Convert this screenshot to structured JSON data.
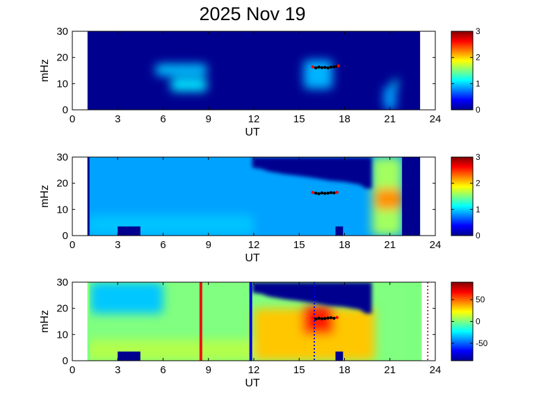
{
  "title": "2025 Nov 19",
  "colors": {
    "background_fill": "#00008f",
    "marker_red": "#ff0000",
    "marker_black": "#000000",
    "red_line": "#ee1111",
    "blue_line": "#0000dd",
    "green_band": "#7fff7f",
    "frame": "#000000"
  },
  "colorbar_scale": "jet",
  "chart_data": [
    {
      "type": "heatmap",
      "name": "panel-1",
      "xlabel": "UT",
      "ylabel": "mHz",
      "xlim": [
        0,
        24
      ],
      "ylim": [
        0,
        30
      ],
      "xticks": [
        "0",
        "3",
        "6",
        "9",
        "12",
        "15",
        "18",
        "21",
        "24"
      ],
      "yticks": [
        "0",
        "10",
        "20",
        "30"
      ],
      "data_time_range": [
        1,
        23
      ],
      "colorbar": {
        "min": 0,
        "max": 3,
        "ticks": [
          "0",
          "1",
          "2",
          "3"
        ]
      },
      "features": [
        {
          "t_range": [
            5.5,
            8.9
          ],
          "f_range": [
            13,
            17.5
          ],
          "level": 0.95
        },
        {
          "t_range": [
            6.5,
            8.9
          ],
          "f_range": [
            7,
            12
          ],
          "level": 1.05
        },
        {
          "t_range": [
            15.3,
            17.2
          ],
          "f_range": [
            8,
            19
          ],
          "level": 0.9
        },
        {
          "t_range": [
            20.6,
            21.4
          ],
          "f_range": [
            0,
            9
          ],
          "level": 0.85
        },
        {
          "t_range": [
            21.2,
            21.5
          ],
          "f_range": [
            8,
            12
          ],
          "level": 1.1
        }
      ],
      "peak_track": {
        "t": [
          15.9,
          16.1,
          16.3,
          16.5,
          16.7,
          16.9,
          17.1,
          17.3,
          17.5,
          17.6
        ],
        "f": [
          16.4,
          16.0,
          16.3,
          16.1,
          16.2,
          16.0,
          16.3,
          16.4,
          16.6,
          16.8
        ]
      }
    },
    {
      "type": "heatmap",
      "name": "panel-2",
      "xlabel": "UT",
      "ylabel": "mHz",
      "xlim": [
        0,
        24
      ],
      "ylim": [
        0,
        30
      ],
      "xticks": [
        "0",
        "3",
        "6",
        "9",
        "12",
        "15",
        "18",
        "21",
        "24"
      ],
      "yticks": [
        "0",
        "10",
        "20",
        "30"
      ],
      "data_time_range": [
        1,
        23
      ],
      "colorbar": {
        "min": 0,
        "max": 3,
        "ticks": [
          "0",
          "1",
          "2",
          "3"
        ]
      },
      "background_level": 0.85,
      "cutoff_edge": {
        "t": [
          11.9,
          12.5,
          13,
          14,
          15,
          16,
          17,
          18,
          19,
          19.4,
          19.8
        ],
        "f": [
          26,
          25.5,
          24.5,
          23.5,
          22.8,
          22,
          21,
          20.5,
          19.5,
          18,
          18
        ]
      },
      "features": [
        {
          "t_range": [
            19.8,
            21.8
          ],
          "f_range": [
            0,
            30
          ],
          "level": 1.6
        },
        {
          "t_range": [
            20,
            21.8
          ],
          "f_range": [
            10,
            18
          ],
          "level": 2.2
        },
        {
          "t_range": [
            1,
            12
          ],
          "f_range": [
            0,
            8
          ],
          "level": 0.95
        }
      ],
      "gaps": [
        {
          "t_range": [
            3,
            4.5
          ],
          "f_range": [
            0,
            3.5
          ]
        },
        {
          "t_range": [
            17.4,
            17.9
          ],
          "f_range": [
            0,
            3.5
          ]
        }
      ],
      "peak_track": {
        "t": [
          15.9,
          16.1,
          16.3,
          16.5,
          16.7,
          16.9,
          17.1,
          17.3,
          17.5
        ],
        "f": [
          16.5,
          16.2,
          16.0,
          16.3,
          16.1,
          16.2,
          16.4,
          16.3,
          16.5
        ]
      }
    },
    {
      "type": "heatmap",
      "name": "panel-3",
      "xlabel": "UT",
      "ylabel": "mHz",
      "xlim": [
        0,
        24
      ],
      "ylim": [
        0,
        30
      ],
      "xticks": [
        "0",
        "3",
        "6",
        "9",
        "12",
        "15",
        "18",
        "21",
        "24"
      ],
      "yticks": [
        "0",
        "10",
        "20",
        "30"
      ],
      "data_time_range": [
        1,
        22
      ],
      "colorbar": {
        "min": -90,
        "max": 90,
        "ticks": [
          "50",
          "0",
          "-50"
        ],
        "tick_values": [
          50,
          0,
          -50
        ]
      },
      "background_level": 0.5,
      "cutoff_edge": {
        "t": [
          11.9,
          12.5,
          13,
          14,
          15,
          16,
          17,
          18,
          19,
          19.4,
          19.8
        ],
        "f": [
          26,
          25.5,
          24.5,
          23.5,
          22.8,
          22,
          21,
          20.5,
          19.5,
          18,
          18
        ]
      },
      "features": [
        {
          "t_range": [
            12,
            20
          ],
          "f_range": [
            0,
            20
          ],
          "level": 0.68
        },
        {
          "t_range": [
            15.2,
            17.3
          ],
          "f_range": [
            10,
            21
          ],
          "level": 0.85
        },
        {
          "t_range": [
            1,
            11.9
          ],
          "f_range": [
            0,
            8
          ],
          "level": 0.55
        },
        {
          "t_range": [
            1.2,
            6
          ],
          "f_range": [
            18,
            30
          ],
          "level": 0.32
        }
      ],
      "gaps": [
        {
          "t_range": [
            3,
            4.5
          ],
          "f_range": [
            0,
            3.5
          ]
        },
        {
          "t_range": [
            17.4,
            17.9
          ],
          "f_range": [
            0,
            3.5
          ]
        }
      ],
      "vertical_lines": [
        {
          "t": 8.5,
          "color": "red",
          "style": "solid"
        },
        {
          "t": 11.8,
          "color": "blue",
          "style": "solid"
        },
        {
          "t": 16.0,
          "color": "blue",
          "style": "dotted"
        },
        {
          "t": 23.5,
          "color": "darkred",
          "style": "dotted"
        }
      ],
      "green_band": {
        "t_range": [
          22,
          23.1
        ]
      },
      "peak_track": {
        "t": [
          15.9,
          16.1,
          16.3,
          16.5,
          16.7,
          16.9,
          17.1,
          17.3,
          17.5
        ],
        "f": [
          16.3,
          15.9,
          16.2,
          16.0,
          16.1,
          16.3,
          16.4,
          16.2,
          16.5
        ]
      }
    }
  ]
}
